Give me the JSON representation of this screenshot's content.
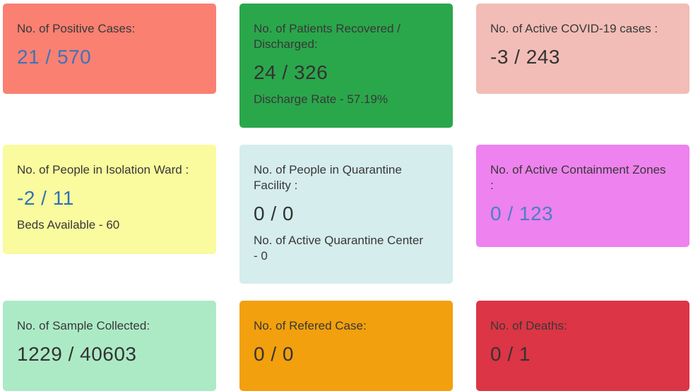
{
  "colors": {
    "page_bg": "#ffffff",
    "title_text": "#383838",
    "value_text_dark": "#333333",
    "value_text_blue": "#3d74b8"
  },
  "cards": [
    {
      "id": "positive-cases",
      "title": "No. of Positive Cases:",
      "value": "21 / 570",
      "bg": "#fa8072",
      "value_color": "#3d74b8"
    },
    {
      "id": "recovered-discharged",
      "title": "No. of Patients Recovered / Discharged:",
      "value": "24 / 326",
      "subtext": "Discharge Rate - 57.19%",
      "bg": "#2aa74b",
      "value_color": "#333333"
    },
    {
      "id": "active-cases",
      "title": "No. of Active COVID-19 cases :",
      "value": "-3 / 243",
      "bg": "#f2bdb6",
      "value_color": "#333333"
    },
    {
      "id": "isolation-ward",
      "title": "No. of People in Isolation Ward :",
      "value": "-2 / 11",
      "subtext": "Beds Available - 60",
      "bg": "#fafa9e",
      "value_color": "#2e73b4"
    },
    {
      "id": "quarantine-facility",
      "title": "No. of People in Quarantine Facility :",
      "value": "0 / 0",
      "subtext": "No. of Active Quarantine Center - 0",
      "bg": "#d5edec",
      "value_color": "#333333"
    },
    {
      "id": "containment-zones",
      "title": "No. of Active Containment Zones :",
      "value": "0 / 123",
      "bg": "#ee82ee",
      "value_color": "#4b7ec8"
    },
    {
      "id": "sample-collected",
      "title": "No. of Sample Collected:",
      "value": "1229 / 40603",
      "bg": "#aceac6",
      "value_color": "#333333"
    },
    {
      "id": "refered-case",
      "title": "No. of Refered Case:",
      "value": "0 / 0",
      "bg": "#f2a00d",
      "value_color": "#333333"
    },
    {
      "id": "deaths",
      "title": "No. of Deaths:",
      "value": "0 / 1",
      "bg": "#dc3545",
      "value_color": "#333333"
    }
  ]
}
